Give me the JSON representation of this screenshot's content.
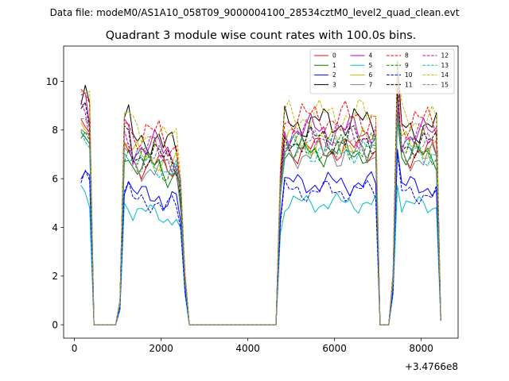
{
  "suptitle": "Data file: modeM0/AS1A10_058T09_9000004100_28534cztM0_level2_quad_clean.evt",
  "chart_data": {
    "type": "line",
    "title": "Quadrant 3 module wise count rates with 100.0s bins.",
    "xlabel": "",
    "ylabel": "",
    "x_offset_label": "+3.4766e8",
    "xlim": [
      -250,
      8850
    ],
    "ylim": [
      -0.55,
      11.45
    ],
    "xticks": [
      0,
      2000,
      4000,
      6000,
      8000
    ],
    "xtick_labels": [
      "0",
      "2000",
      "4000",
      "6000",
      "8000"
    ],
    "yticks": [
      0,
      2,
      4,
      6,
      8,
      10
    ],
    "ytick_labels": [
      "0",
      "2",
      "4",
      "6",
      "8",
      "10"
    ],
    "legend_position": "top-right",
    "x_segments": [
      {
        "start": 150,
        "end": 350,
        "step": 100
      },
      {
        "start": 450,
        "end": 950,
        "step": 100
      },
      {
        "start": 1050,
        "end": 2550,
        "step": 100
      },
      {
        "start": 2650,
        "end": 4650,
        "step": 100
      },
      {
        "start": 4750,
        "end": 6950,
        "step": 100
      },
      {
        "start": 7050,
        "end": 7250,
        "step": 100
      },
      {
        "start": 7350,
        "end": 8350,
        "step": 100
      },
      {
        "start": 8450,
        "end": 8450,
        "step": 100
      }
    ],
    "series": [
      {
        "name": "0",
        "color": "#ff0000",
        "dash": "solid",
        "base": 7.2
      },
      {
        "name": "1",
        "color": "#008000",
        "dash": "solid",
        "base": 7.1
      },
      {
        "name": "2",
        "color": "#0000ff",
        "dash": "solid",
        "base": 5.8
      },
      {
        "name": "3",
        "color": "#000000",
        "dash": "solid",
        "base": 8.3
      },
      {
        "name": "4",
        "color": "#bf00bf",
        "dash": "solid",
        "base": 8.0
      },
      {
        "name": "5",
        "color": "#00bfbf",
        "dash": "solid",
        "base": 5.0
      },
      {
        "name": "6",
        "color": "#bfbf00",
        "dash": "solid",
        "base": 7.5
      },
      {
        "name": "7",
        "color": "#808080",
        "dash": "solid",
        "base": 7.0
      },
      {
        "name": "8",
        "color": "#ff0000",
        "dash": "dashed",
        "base": 8.5
      },
      {
        "name": "9",
        "color": "#008000",
        "dash": "dashed",
        "base": 7.3
      },
      {
        "name": "10",
        "color": "#0000ff",
        "dash": "dashed",
        "base": 5.5
      },
      {
        "name": "11",
        "color": "#000000",
        "dash": "dashed",
        "base": 7.6
      },
      {
        "name": "12",
        "color": "#bf00bf",
        "dash": "dashed",
        "base": 7.8
      },
      {
        "name": "13",
        "color": "#00bfbf",
        "dash": "dashed",
        "base": 7.2
      },
      {
        "name": "14",
        "color": "#bfbf00",
        "dash": "dashed",
        "base": 8.6
      },
      {
        "name": "15",
        "color": "#808080",
        "dash": "dashed",
        "base": 7.4
      }
    ]
  }
}
